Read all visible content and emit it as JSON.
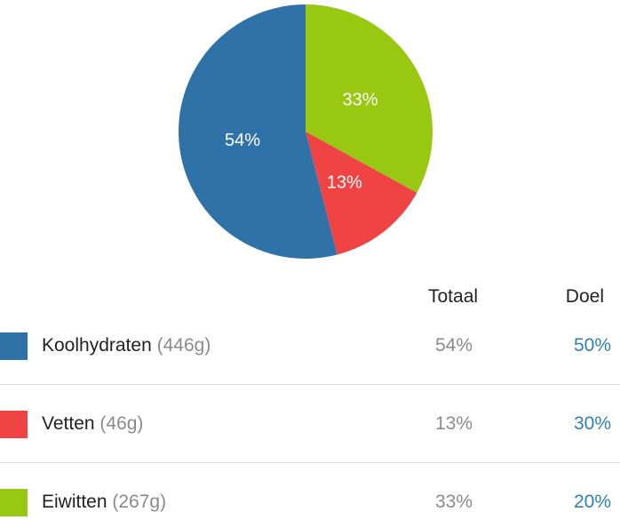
{
  "colors": {
    "carbs": "#2f72a8",
    "fat": "#f04444",
    "protein": "#99c813",
    "goal_text": "#2f7fb7"
  },
  "chart_data": {
    "type": "pie",
    "categories": [
      "Koolhydraten",
      "Vetten",
      "Eiwitten"
    ],
    "values": [
      54,
      13,
      33
    ],
    "slice_labels": [
      "54%",
      "13%",
      "33%"
    ],
    "start": "12 o'clock",
    "order_clockwise": [
      "Eiwitten",
      "Vetten",
      "Koolhydraten"
    ]
  },
  "table": {
    "headers": {
      "total": "Totaal",
      "goal": "Doel"
    },
    "rows": [
      {
        "key": "carbs",
        "name": "Koolhydraten",
        "grams": "(446g)",
        "total": "54%",
        "goal": "50%"
      },
      {
        "key": "fat",
        "name": "Vetten",
        "grams": "(46g)",
        "total": "13%",
        "goal": "30%"
      },
      {
        "key": "protein",
        "name": "Eiwitten",
        "grams": "(267g)",
        "total": "33%",
        "goal": "20%"
      }
    ]
  }
}
